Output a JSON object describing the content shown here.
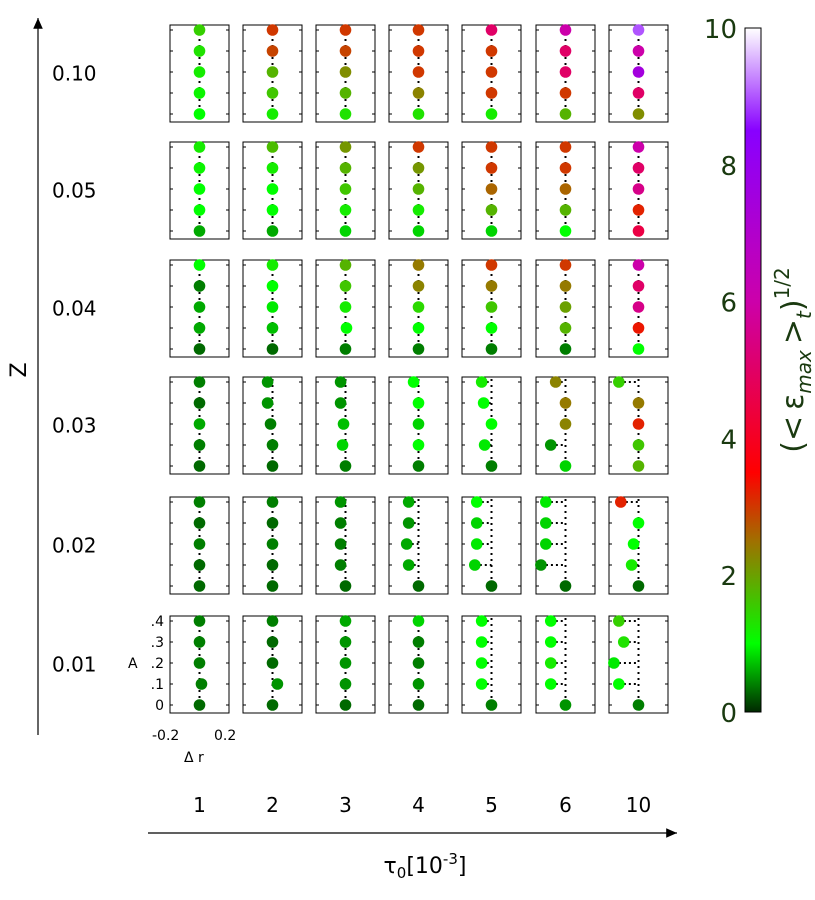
{
  "chart_data": {
    "type": "scatter",
    "y_axis": {
      "label": "Z",
      "row_values": [
        "0.10",
        "0.05",
        "0.04",
        "0.03",
        "0.02",
        "0.01"
      ]
    },
    "x_axis": {
      "label": "τ0[10-3]",
      "label_main": "τ",
      "label_sub": "0",
      "label_bracket_open": "[10",
      "label_sup": "-3",
      "label_bracket_close": "]",
      "column_values": [
        "1",
        "2",
        "3",
        "4",
        "5",
        "6",
        "10"
      ]
    },
    "inner_axes": {
      "y_label": "A",
      "y_ticks": [
        ".4",
        ".3",
        ".2",
        ".1",
        "0"
      ],
      "x_label": "Δ r",
      "x_ticks": [
        "-0.2",
        "0.2"
      ]
    },
    "colorbar": {
      "label": "(< ε_max >_t)^1/2",
      "label_open": "(<",
      "label_eps": "ε",
      "label_sub": "max",
      "label_gt": ">",
      "label_t": "t",
      "label_close": ")",
      "label_exp": "1/2",
      "range": [
        0,
        10
      ],
      "ticks": [
        "0",
        "2",
        "4",
        "6",
        "8",
        "10"
      ],
      "colors": [
        "#000000",
        "#00ff00",
        "#a07000",
        "#ff0000",
        "#cc00aa",
        "#8800ff",
        "#ffffff"
      ]
    },
    "grid": false,
    "points_note": "Each panel: points at A = 0.4,0.3,0.2,0.1,0 with value dr (offset) and c (color value 0-10)",
    "panels": [
      [
        {
          "p": [
            [
              0,
              1.5
            ],
            [
              0,
              1.3
            ],
            [
              0,
              1.2
            ],
            [
              0,
              1.1
            ],
            [
              0,
              1.0
            ]
          ]
        },
        {
          "p": [
            [
              0,
              3.0
            ],
            [
              0,
              2.9
            ],
            [
              0,
              1.8
            ],
            [
              0,
              1.6
            ],
            [
              0,
              1.2
            ]
          ]
        },
        {
          "p": [
            [
              0,
              3.0
            ],
            [
              0,
              2.9
            ],
            [
              0,
              2.2
            ],
            [
              0,
              1.8
            ],
            [
              0,
              1.3
            ]
          ]
        },
        {
          "p": [
            [
              0,
              3.0
            ],
            [
              0,
              3.0
            ],
            [
              0,
              3.0
            ],
            [
              0,
              2.3
            ],
            [
              0,
              1.3
            ]
          ]
        },
        {
          "p": [
            [
              0,
              5.0
            ],
            [
              0,
              3.0
            ],
            [
              0,
              3.0
            ],
            [
              0,
              3.0
            ],
            [
              0,
              1.2
            ]
          ]
        },
        {
          "p": [
            [
              0,
              6.0
            ],
            [
              0,
              5.0
            ],
            [
              0,
              5.0
            ],
            [
              0,
              3.0
            ],
            [
              0,
              1.8
            ]
          ]
        },
        {
          "p": [
            [
              0,
              9.0
            ],
            [
              0,
              6.0
            ],
            [
              0,
              7.5
            ],
            [
              0,
              5.0
            ],
            [
              0,
              2.2
            ]
          ]
        }
      ],
      [
        {
          "p": [
            [
              0,
              1.2
            ],
            [
              0,
              1.1
            ],
            [
              0,
              1.0
            ],
            [
              0,
              1.0
            ],
            [
              0,
              0.6
            ]
          ]
        },
        {
          "p": [
            [
              0,
              1.7
            ],
            [
              0,
              1.2
            ],
            [
              0,
              1.0
            ],
            [
              0,
              1.0
            ],
            [
              0,
              0.6
            ]
          ]
        },
        {
          "p": [
            [
              0,
              2.1
            ],
            [
              0,
              1.8
            ],
            [
              0,
              1.6
            ],
            [
              0,
              1.2
            ],
            [
              0,
              0.8
            ]
          ]
        },
        {
          "p": [
            [
              0,
              3.0
            ],
            [
              0,
              2.1
            ],
            [
              0,
              1.8
            ],
            [
              0,
              1.2
            ],
            [
              0,
              0.8
            ]
          ]
        },
        {
          "p": [
            [
              0,
              3.0
            ],
            [
              0,
              3.0
            ],
            [
              0,
              2.6
            ],
            [
              0,
              1.8
            ],
            [
              0,
              0.8
            ]
          ]
        },
        {
          "p": [
            [
              0,
              3.0
            ],
            [
              0,
              3.0
            ],
            [
              0,
              2.6
            ],
            [
              0,
              1.8
            ],
            [
              0,
              1.0
            ]
          ]
        },
        {
          "p": [
            [
              0,
              6.0
            ],
            [
              0,
              5.0
            ],
            [
              0,
              5.5
            ],
            [
              0,
              3.2
            ],
            [
              0,
              4.5
            ]
          ]
        }
      ],
      [
        {
          "p": [
            [
              0,
              1.0
            ],
            [
              0,
              0.4
            ],
            [
              0,
              0.6
            ],
            [
              0,
              0.6
            ],
            [
              0,
              0.3
            ]
          ]
        },
        {
          "p": [
            [
              0,
              1.2
            ],
            [
              0,
              1.0
            ],
            [
              0,
              0.9
            ],
            [
              0,
              0.7
            ],
            [
              0,
              0.3
            ]
          ]
        },
        {
          "p": [
            [
              0,
              1.8
            ],
            [
              0,
              1.6
            ],
            [
              0,
              1.2
            ],
            [
              0.01,
              1.0
            ],
            [
              0,
              0.4
            ]
          ]
        },
        {
          "p": [
            [
              0,
              2.4
            ],
            [
              0,
              2.3
            ],
            [
              0,
              1.4
            ],
            [
              0,
              1.0
            ],
            [
              0,
              0.4
            ]
          ]
        },
        {
          "p": [
            [
              0,
              3.0
            ],
            [
              0,
              2.4
            ],
            [
              0,
              1.6
            ],
            [
              0,
              1.0
            ],
            [
              0,
              0.4
            ]
          ]
        },
        {
          "p": [
            [
              0,
              3.0
            ],
            [
              0,
              2.4
            ],
            [
              0,
              2.0
            ],
            [
              0,
              1.8
            ],
            [
              0,
              0.4
            ]
          ]
        },
        {
          "p": [
            [
              0,
              6.0
            ],
            [
              0,
              5.0
            ],
            [
              0,
              5.5
            ],
            [
              0,
              3.3
            ],
            [
              0,
              1.0
            ]
          ]
        }
      ],
      [
        {
          "p": [
            [
              0,
              0.4
            ],
            [
              0,
              0.3
            ],
            [
              0,
              0.6
            ],
            [
              0,
              0.4
            ],
            [
              0,
              0.3
            ]
          ]
        },
        {
          "p": [
            [
              -0.05,
              0.5
            ],
            [
              -0.05,
              0.5
            ],
            [
              -0.02,
              0.4
            ],
            [
              0,
              0.4
            ],
            [
              0,
              0.3
            ]
          ]
        },
        {
          "p": [
            [
              -0.05,
              0.5
            ],
            [
              -0.05,
              0.5
            ],
            [
              -0.02,
              0.7
            ],
            [
              -0.03,
              0.8
            ],
            [
              0,
              0.4
            ]
          ]
        },
        {
          "p": [
            [
              -0.05,
              1.0
            ],
            [
              0,
              1.0
            ],
            [
              0,
              0.8
            ],
            [
              0,
              1.0
            ],
            [
              0,
              0.4
            ]
          ]
        },
        {
          "p": [
            [
              -0.1,
              1.2
            ],
            [
              -0.08,
              1.0
            ],
            [
              0,
              1.0
            ],
            [
              -0.07,
              0.9
            ],
            [
              0,
              0.4
            ]
          ]
        },
        {
          "p": [
            [
              -0.1,
              2.3
            ],
            [
              0,
              2.4
            ],
            [
              0,
              2.3
            ],
            [
              -0.15,
              0.5
            ],
            [
              0,
              0.8
            ]
          ]
        },
        {
          "p": [
            [
              -0.2,
              1.5
            ],
            [
              0,
              2.4
            ],
            [
              0,
              3.2
            ],
            [
              0,
              1.6
            ],
            [
              0,
              1.8
            ]
          ]
        }
      ],
      [
        {
          "p": [
            [
              0,
              0.4
            ],
            [
              0,
              0.3
            ],
            [
              0,
              0.4
            ],
            [
              0,
              0.3
            ],
            [
              0,
              0.3
            ]
          ]
        },
        {
          "p": [
            [
              0,
              0.4
            ],
            [
              0,
              0.3
            ],
            [
              0,
              0.4
            ],
            [
              0,
              0.3
            ],
            [
              0,
              0.3
            ]
          ]
        },
        {
          "p": [
            [
              -0.05,
              0.5
            ],
            [
              -0.05,
              0.4
            ],
            [
              -0.05,
              0.4
            ],
            [
              -0.05,
              0.4
            ],
            [
              0,
              0.3
            ]
          ]
        },
        {
          "p": [
            [
              -0.1,
              0.6
            ],
            [
              -0.1,
              0.5
            ],
            [
              -0.12,
              0.6
            ],
            [
              -0.1,
              0.6
            ],
            [
              0,
              0.3
            ]
          ]
        },
        {
          "p": [
            [
              -0.15,
              1.0
            ],
            [
              -0.15,
              0.8
            ],
            [
              -0.15,
              0.9
            ],
            [
              -0.17,
              0.8
            ],
            [
              0,
              0.3
            ]
          ]
        },
        {
          "p": [
            [
              -0.2,
              0.9
            ],
            [
              -0.2,
              0.8
            ],
            [
              -0.2,
              0.8
            ],
            [
              -0.25,
              0.5
            ],
            [
              0,
              0.3
            ]
          ]
        },
        {
          "p": [
            [
              -0.18,
              3.2
            ],
            [
              0,
              1.0
            ],
            [
              -0.05,
              1.0
            ],
            [
              -0.07,
              1.2
            ],
            [
              0,
              0.3
            ]
          ]
        }
      ],
      [
        {
          "p": [
            [
              0,
              0.4
            ],
            [
              0,
              0.4
            ],
            [
              0,
              0.4
            ],
            [
              0.02,
              0.4
            ],
            [
              0,
              0.3
            ]
          ]
        },
        {
          "p": [
            [
              0,
              0.4
            ],
            [
              0,
              0.3
            ],
            [
              0,
              0.3
            ],
            [
              0.05,
              0.5
            ],
            [
              0,
              0.3
            ]
          ]
        },
        {
          "p": [
            [
              0,
              0.6
            ],
            [
              0,
              0.5
            ],
            [
              0,
              0.5
            ],
            [
              0,
              0.5
            ],
            [
              0,
              0.3
            ]
          ]
        },
        {
          "p": [
            [
              0,
              0.8
            ],
            [
              0,
              0.4
            ],
            [
              0,
              0.4
            ],
            [
              0,
              0.5
            ],
            [
              0,
              0.3
            ]
          ]
        },
        {
          "p": [
            [
              -0.1,
              1.0
            ],
            [
              -0.1,
              1.0
            ],
            [
              -0.1,
              1.0
            ],
            [
              -0.1,
              1.0
            ],
            [
              0,
              0.4
            ]
          ]
        },
        {
          "p": [
            [
              -0.15,
              1.0
            ],
            [
              -0.15,
              1.0
            ],
            [
              -0.15,
              1.2
            ],
            [
              -0.15,
              1.0
            ],
            [
              0,
              0.5
            ]
          ]
        },
        {
          "p": [
            [
              -0.2,
              1.5
            ],
            [
              -0.15,
              1.3
            ],
            [
              -0.25,
              0.9
            ],
            [
              -0.2,
              1.0
            ],
            [
              0,
              0.4
            ]
          ]
        }
      ]
    ]
  }
}
